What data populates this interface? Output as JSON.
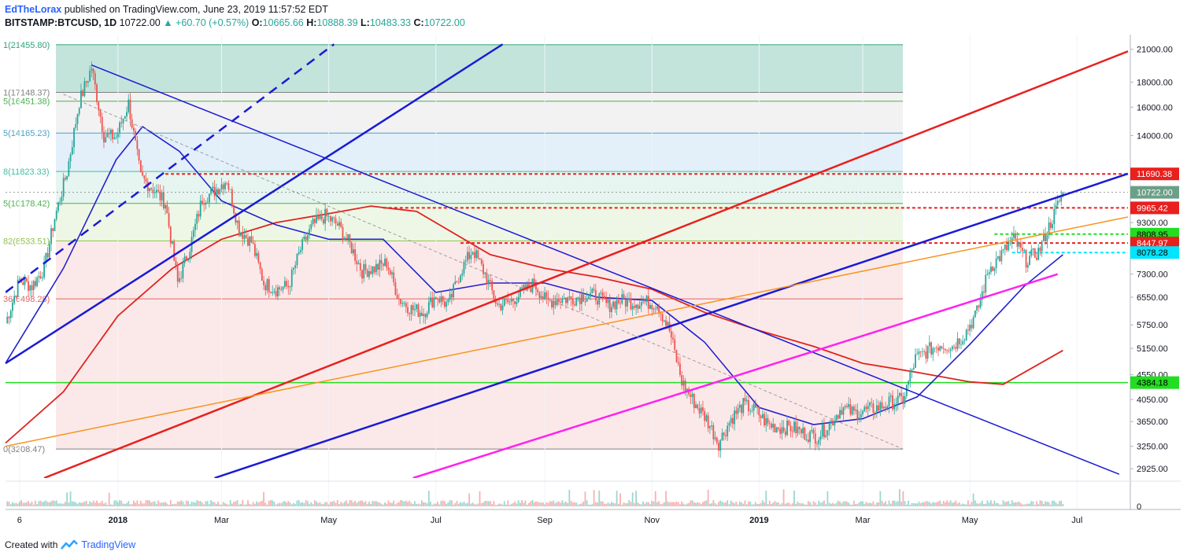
{
  "header": {
    "author": "EdTheLorax",
    "published_text": "published on TradingView.com, June 23, 2019 11:57:52 EDT",
    "symbol": "BITSTAMP:BTCUSD, 1D",
    "last": "10722.00",
    "change": "▲ +60.70 (+0.57%)",
    "o_label": "O:",
    "o": "10665.66",
    "h_label": "H:",
    "h": "10888.39",
    "l_label": "L:",
    "l": "10483.33",
    "c_label": "C:",
    "c": "10722.00"
  },
  "footer": {
    "created_with": "Created with",
    "brand": "TradingView"
  },
  "colors": {
    "up": "#26a69a",
    "down": "#ef5350",
    "blue": "#1a1ad6",
    "red": "#e8201e",
    "orange": "#f7941d",
    "magenta": "#ff21f0",
    "ma50": "#2222cc",
    "ma200": "#e0231e"
  },
  "chart_data": {
    "type": "candlestick",
    "y_scale": "log",
    "ylim": [
      2800,
      22500
    ],
    "x_range": [
      "2017-10-29",
      "2019-07-30"
    ],
    "x_tick_labels": [
      {
        "label": "6",
        "date": "2017-11-06"
      },
      {
        "label": "2018",
        "date": "2018-01-01"
      },
      {
        "label": "Mar",
        "date": "2018-03-01"
      },
      {
        "label": "May",
        "date": "2018-05-01"
      },
      {
        "label": "Jul",
        "date": "2018-07-01"
      },
      {
        "label": "Sep",
        "date": "2018-09-01"
      },
      {
        "label": "Nov",
        "date": "2018-11-01"
      },
      {
        "label": "2019",
        "date": "2019-01-01"
      },
      {
        "label": "Mar",
        "date": "2019-03-01"
      },
      {
        "label": "May",
        "date": "2019-05-01"
      },
      {
        "label": "Jul",
        "date": "2019-07-01"
      }
    ],
    "y_tick_labels": [
      "21000.00",
      "18000.00",
      "16000.00",
      "14000.00",
      "9300.00",
      "7300.00",
      "6550.00",
      "5750.00",
      "5150.00",
      "4550.00",
      "4050.00",
      "3650.00",
      "3250.00",
      "2925.00"
    ],
    "price_labels": [
      {
        "text": "11690.38",
        "value": 11690.38,
        "bg": "#e8201e",
        "fg": "#ffffff"
      },
      {
        "text": "10722.00",
        "value": 10722,
        "bg": "#6b9f88",
        "fg": "#ffffff"
      },
      {
        "text": "9965.42",
        "value": 9965.42,
        "bg": "#e8201e",
        "fg": "#ffffff"
      },
      {
        "text": "8808.95",
        "value": 8808.95,
        "bg": "#22dd22",
        "fg": "#000000"
      },
      {
        "text": "8447.97",
        "value": 8447.97,
        "bg": "#e8201e",
        "fg": "#ffffff"
      },
      {
        "text": "8078.28",
        "value": 8078.28,
        "bg": "#00e5ff",
        "fg": "#000000"
      },
      {
        "text": "4384.18",
        "value": 4384.18,
        "bg": "#22dd22",
        "fg": "#000000"
      }
    ],
    "fib_levels": [
      {
        "label": "1(21455.80)",
        "value": 21455.8,
        "color": "#2fa37a",
        "fill": "#c3e4db"
      },
      {
        "label": "1(17148.37)",
        "value": 17148.37,
        "color": "#7f7f7f",
        "fill": "#f2f2f2"
      },
      {
        "label": "5(16451.38)",
        "value": 16451.38,
        "color": "#4caf50",
        "fill": "#f2f2f2"
      },
      {
        "label": "5(14165.23)",
        "value": 14165.23,
        "color": "#4aa3c9",
        "fill": "#e3eff9"
      },
      {
        "label": "8(11823.33)",
        "value": 11823.33,
        "color": "#3fbf9f",
        "fill": "#e6f5f0"
      },
      {
        "label": "5(10178.42)",
        "value": 10178.42,
        "color": "#4caf50",
        "fill": "#eef7e6"
      },
      {
        "label": "82(8533.51)",
        "value": 8533.51,
        "color": "#8bc34a",
        "fill": "#fbe9e9"
      },
      {
        "label": "36(6498.28)",
        "value": 6498.28,
        "color": "#e06666",
        "fill": "#fbe9e9"
      },
      {
        "label": "0(3208.47)",
        "value": 3208.47,
        "color": "#7f7f7f",
        "fill": null
      }
    ],
    "horizontal_lines": [
      {
        "value": 11690.38,
        "color": "#e8201e",
        "style": "dotted",
        "from": "2018-01-28"
      },
      {
        "value": 9965.42,
        "color": "#e8201e",
        "style": "dotted",
        "from": "2018-06-01"
      },
      {
        "value": 8808.95,
        "color": "#22dd22",
        "style": "dotted",
        "from": "2019-05-15"
      },
      {
        "value": 8447.97,
        "color": "#e8201e",
        "style": "dotted",
        "from": "2018-07-15"
      },
      {
        "value": 8078.28,
        "color": "#00e5ff",
        "style": "dotted",
        "from": "2019-05-25"
      },
      {
        "value": 4384.18,
        "color": "#22dd22",
        "style": "solid",
        "from": "2017-10-29"
      },
      {
        "value": 10722,
        "color": "#999999",
        "style": "dotted",
        "from": "2017-10-29"
      }
    ],
    "trendlines": [
      {
        "color": "#1a1ad6",
        "width": 2.5,
        "dash": false,
        "p1": [
          "2017-10-29",
          4800
        ],
        "p2": [
          "2018-08-08",
          21500
        ]
      },
      {
        "color": "#1a1ad6",
        "width": 2.5,
        "dash": true,
        "p1": [
          "2017-10-29",
          6700
        ],
        "p2": [
          "2018-05-04",
          21500
        ]
      },
      {
        "color": "#1a1ad6",
        "width": 1.5,
        "dash": false,
        "p1": [
          "2017-12-17",
          19500
        ],
        "p2": [
          "2019-07-25",
          2850
        ]
      },
      {
        "color": "#1a1ad6",
        "width": 2.5,
        "dash": false,
        "p1": [
          "2018-02-25",
          2800
        ],
        "p2": [
          "2019-07-30",
          11700
        ]
      },
      {
        "color": "#e8201e",
        "width": 2.5,
        "dash": false,
        "p1": [
          "2017-11-20",
          2800
        ],
        "p2": [
          "2019-07-30",
          20800
        ]
      },
      {
        "color": "#f7941d",
        "width": 1.5,
        "dash": false,
        "p1": [
          "2017-10-29",
          3250
        ],
        "p2": [
          "2019-07-30",
          9550
        ]
      },
      {
        "color": "#ff21f0",
        "width": 2.5,
        "dash": false,
        "p1": [
          "2018-06-18",
          2800
        ],
        "p2": [
          "2019-06-20",
          7300
        ]
      },
      {
        "color": "#9e9e9e",
        "width": 1,
        "dash": true,
        "p1": [
          "2017-12-01",
          17000
        ],
        "p2": [
          "2019-03-24",
          3208
        ]
      }
    ],
    "candles_1d_close_approx": [
      [
        "2017-10-29",
        5800
      ],
      [
        "2017-11-06",
        7100
      ],
      [
        "2017-11-13",
        6900
      ],
      [
        "2017-11-20",
        7500
      ],
      [
        "2017-11-26",
        9500
      ],
      [
        "2017-12-03",
        11800
      ],
      [
        "2017-12-10",
        16400
      ],
      [
        "2017-12-17",
        19300
      ],
      [
        "2017-12-24",
        14000
      ],
      [
        "2017-12-31",
        13900
      ],
      [
        "2018-01-07",
        16300
      ],
      [
        "2018-01-14",
        11500
      ],
      [
        "2018-01-21",
        10900
      ],
      [
        "2018-01-28",
        10200
      ],
      [
        "2018-02-04",
        7000
      ],
      [
        "2018-02-11",
        8300
      ],
      [
        "2018-02-18",
        10400
      ],
      [
        "2018-02-25",
        10800
      ],
      [
        "2018-03-04",
        11400
      ],
      [
        "2018-03-11",
        9000
      ],
      [
        "2018-03-18",
        8500
      ],
      [
        "2018-03-25",
        7000
      ],
      [
        "2018-04-01",
        6800
      ],
      [
        "2018-04-08",
        6900
      ],
      [
        "2018-04-15",
        8200
      ],
      [
        "2018-04-22",
        9200
      ],
      [
        "2018-04-29",
        9600
      ],
      [
        "2018-05-06",
        9200
      ],
      [
        "2018-05-13",
        8400
      ],
      [
        "2018-05-20",
        7400
      ],
      [
        "2018-05-27",
        7500
      ],
      [
        "2018-06-03",
        7700
      ],
      [
        "2018-06-10",
        6500
      ],
      [
        "2018-06-17",
        6200
      ],
      [
        "2018-06-24",
        6100
      ],
      [
        "2018-07-01",
        6600
      ],
      [
        "2018-07-08",
        6300
      ],
      [
        "2018-07-15",
        7400
      ],
      [
        "2018-07-22",
        8200
      ],
      [
        "2018-07-29",
        7300
      ],
      [
        "2018-08-05",
        6300
      ],
      [
        "2018-08-12",
        6400
      ],
      [
        "2018-08-19",
        6700
      ],
      [
        "2018-08-26",
        7000
      ],
      [
        "2018-09-02",
        6400
      ],
      [
        "2018-09-09",
        6500
      ],
      [
        "2018-09-16",
        6500
      ],
      [
        "2018-09-23",
        6600
      ],
      [
        "2018-09-30",
        6600
      ],
      [
        "2018-10-07",
        6300
      ],
      [
        "2018-10-14",
        6450
      ],
      [
        "2018-10-21",
        6400
      ],
      [
        "2018-10-28",
        6400
      ],
      [
        "2018-11-04",
        6350
      ],
      [
        "2018-11-11",
        5600
      ],
      [
        "2018-11-18",
        4400
      ],
      [
        "2018-11-25",
        4000
      ],
      [
        "2018-12-02",
        3700
      ],
      [
        "2018-12-09",
        3300
      ],
      [
        "2018-12-16",
        3700
      ],
      [
        "2018-12-23",
        3950
      ],
      [
        "2018-12-30",
        3850
      ],
      [
        "2019-01-06",
        3600
      ],
      [
        "2019-01-13",
        3550
      ],
      [
        "2019-01-20",
        3550
      ],
      [
        "2019-01-27",
        3450
      ],
      [
        "2019-02-03",
        3400
      ],
      [
        "2019-02-10",
        3600
      ],
      [
        "2019-02-17",
        3900
      ],
      [
        "2019-02-24",
        3800
      ],
      [
        "2019-03-03",
        3850
      ],
      [
        "2019-03-10",
        3900
      ],
      [
        "2019-03-17",
        4000
      ],
      [
        "2019-03-24",
        4050
      ],
      [
        "2019-03-31",
        4900
      ],
      [
        "2019-04-07",
        5100
      ],
      [
        "2019-04-14",
        5250
      ],
      [
        "2019-04-21",
        5200
      ],
      [
        "2019-04-28",
        5500
      ],
      [
        "2019-05-05",
        6100
      ],
      [
        "2019-05-12",
        7500
      ],
      [
        "2019-05-19",
        8000
      ],
      [
        "2019-05-26",
        8600
      ],
      [
        "2019-06-02",
        7800
      ],
      [
        "2019-06-09",
        8100
      ],
      [
        "2019-06-16",
        9300
      ],
      [
        "2019-06-23",
        10722
      ]
    ],
    "ma50_approx": [
      [
        "2017-10-29",
        4800
      ],
      [
        "2017-12-01",
        7500
      ],
      [
        "2017-12-31",
        12500
      ],
      [
        "2018-01-15",
        14600
      ],
      [
        "2018-02-05",
        13000
      ],
      [
        "2018-03-01",
        10300
      ],
      [
        "2018-04-01",
        9200
      ],
      [
        "2018-05-01",
        8600
      ],
      [
        "2018-06-01",
        8600
      ],
      [
        "2018-07-01",
        6700
      ],
      [
        "2018-08-01",
        7000
      ],
      [
        "2018-09-01",
        7000
      ],
      [
        "2018-10-01",
        6550
      ],
      [
        "2018-11-01",
        6450
      ],
      [
        "2018-12-01",
        5300
      ],
      [
        "2019-01-01",
        3900
      ],
      [
        "2019-02-01",
        3600
      ],
      [
        "2019-03-01",
        3700
      ],
      [
        "2019-04-01",
        4100
      ],
      [
        "2019-05-01",
        5250
      ],
      [
        "2019-06-01",
        6900
      ],
      [
        "2019-06-23",
        8000
      ]
    ],
    "ma200_approx": [
      [
        "2017-10-29",
        3300
      ],
      [
        "2017-12-01",
        4200
      ],
      [
        "2018-01-01",
        6000
      ],
      [
        "2018-02-01",
        7500
      ],
      [
        "2018-03-01",
        8600
      ],
      [
        "2018-04-01",
        9300
      ],
      [
        "2018-05-01",
        9700
      ],
      [
        "2018-05-25",
        10050
      ],
      [
        "2018-06-20",
        9800
      ],
      [
        "2018-08-01",
        8000
      ],
      [
        "2018-09-01",
        7500
      ],
      [
        "2018-10-01",
        7200
      ],
      [
        "2018-11-01",
        6800
      ],
      [
        "2018-12-01",
        6100
      ],
      [
        "2019-01-01",
        5600
      ],
      [
        "2019-02-01",
        5200
      ],
      [
        "2019-03-01",
        4800
      ],
      [
        "2019-04-01",
        4600
      ],
      [
        "2019-05-01",
        4400
      ],
      [
        "2019-05-20",
        4350
      ],
      [
        "2019-06-23",
        5100
      ]
    ]
  }
}
